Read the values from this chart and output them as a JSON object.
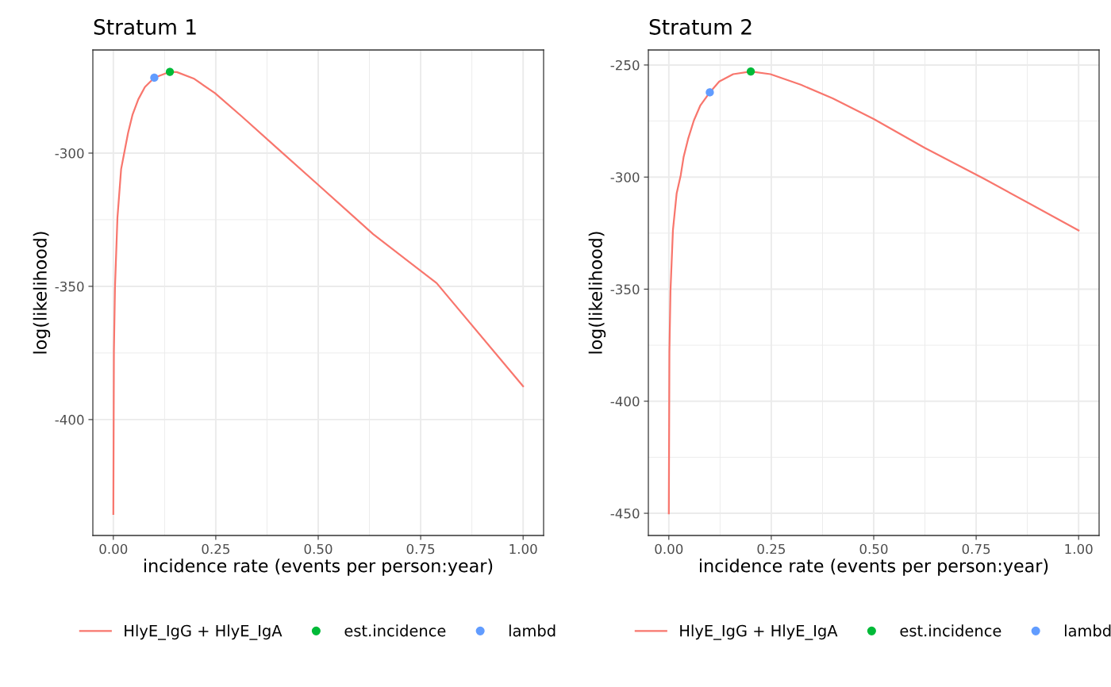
{
  "chart_data": [
    {
      "type": "line",
      "title": "Stratum 1",
      "xlabel": "incidence rate (events per person:year)",
      "ylabel": "log(likelihood)",
      "xlim": [
        -0.05,
        1.05
      ],
      "xticks": [
        {
          "value": 0,
          "label": "0.00"
        },
        {
          "value": 0.25,
          "label": "0.25"
        },
        {
          "value": 0.5,
          "label": "0.50"
        },
        {
          "value": 0.75,
          "label": "0.75"
        },
        {
          "value": 1,
          "label": "1.00"
        }
      ],
      "ylim": [
        -443.5,
        -261.3
      ],
      "yticks": [
        -300,
        -350,
        -400
      ],
      "grid": true,
      "legend": "bottom",
      "series": [
        {
          "name": "HlyE_IgG + HlyE_IgA",
          "color": "#f8766d",
          "x": [
            0.0,
            0.0014,
            0.004,
            0.01,
            0.019,
            0.029,
            0.036,
            0.047,
            0.061,
            0.077,
            0.1,
            0.138,
            0.155,
            0.196,
            0.248,
            0.314,
            0.4,
            0.5,
            0.634,
            0.789,
            1.0
          ],
          "values": [
            -435.4,
            -374.4,
            -350.5,
            -324.3,
            -306,
            -298,
            -292.4,
            -285.5,
            -279.8,
            -275.2,
            -271.7,
            -269.5,
            -269.6,
            -272,
            -277.5,
            -286.3,
            -298.2,
            -311.9,
            -330.4,
            -348.8,
            -387.5
          ]
        },
        {
          "name": "est.incidence",
          "type": "scatter",
          "color": "#00ba38",
          "x": [
            0.138
          ],
          "values": [
            -269.5
          ]
        },
        {
          "name": "lambd",
          "type": "scatter",
          "color": "#619cff",
          "x": [
            0.1
          ],
          "values": [
            -271.7
          ]
        }
      ]
    },
    {
      "type": "line",
      "title": "Stratum 2",
      "xlabel": "incidence rate (events per person:year)",
      "ylabel": "log(likelihood)",
      "xlim": [
        -0.05,
        1.05
      ],
      "xticks": [
        {
          "value": 0,
          "label": "0.00"
        },
        {
          "value": 0.25,
          "label": "0.25"
        },
        {
          "value": 0.5,
          "label": "0.50"
        },
        {
          "value": 0.75,
          "label": "0.75"
        },
        {
          "value": 1,
          "label": "1.00"
        }
      ],
      "ylim": [
        -459.9,
        -243.3
      ],
      "yticks": [
        -250,
        -300,
        -350,
        -400,
        -450
      ],
      "grid": true,
      "legend": "bottom",
      "series": [
        {
          "name": "HlyE_IgG + HlyE_IgA",
          "color": "#f8766d",
          "x": [
            0.0,
            0.0014,
            0.004,
            0.01,
            0.019,
            0.029,
            0.036,
            0.047,
            0.061,
            0.077,
            0.1,
            0.123,
            0.157,
            0.2,
            0.248,
            0.322,
            0.4,
            0.5,
            0.624,
            0.769,
            1.0
          ],
          "values": [
            -450,
            -378,
            -350.9,
            -323.7,
            -307.4,
            -299.2,
            -291.1,
            -283,
            -274.8,
            -268,
            -262.2,
            -257.4,
            -254.1,
            -252.9,
            -254.1,
            -258.8,
            -264.9,
            -274.1,
            -286.9,
            -300.7,
            -323.8
          ]
        },
        {
          "name": "est.incidence",
          "type": "scatter",
          "color": "#00ba38",
          "x": [
            0.2
          ],
          "values": [
            -252.9
          ]
        },
        {
          "name": "lambd",
          "type": "scatter",
          "color": "#619cff",
          "x": [
            0.1
          ],
          "values": [
            -262.2
          ]
        }
      ]
    }
  ]
}
